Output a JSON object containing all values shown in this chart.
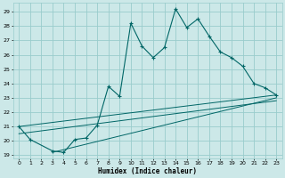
{
  "xlabel": "Humidex (Indice chaleur)",
  "bg_color": "#cce8e8",
  "grid_color": "#99cccc",
  "line_color": "#006666",
  "xlim": [
    -0.5,
    23.5
  ],
  "ylim": [
    18.8,
    29.6
  ],
  "yticks": [
    19,
    20,
    21,
    22,
    23,
    24,
    25,
    26,
    27,
    28,
    29
  ],
  "xticks": [
    0,
    1,
    2,
    3,
    4,
    5,
    6,
    7,
    8,
    9,
    10,
    11,
    12,
    13,
    14,
    15,
    16,
    17,
    18,
    19,
    20,
    21,
    22,
    23
  ],
  "main_series_x": [
    0,
    1,
    3,
    4,
    5,
    6,
    7,
    8,
    9,
    10,
    11,
    12,
    13,
    14,
    15,
    16,
    17,
    18,
    19,
    20,
    21,
    22,
    23
  ],
  "main_series_y": [
    21.0,
    20.1,
    19.3,
    19.2,
    20.1,
    20.2,
    21.1,
    23.8,
    23.1,
    28.2,
    26.6,
    25.8,
    26.5,
    29.2,
    27.9,
    28.5,
    27.3,
    26.2,
    25.8,
    25.2,
    24.0,
    23.7,
    23.2
  ],
  "line2_x": [
    0,
    23
  ],
  "line2_y": [
    21.0,
    23.2
  ],
  "line3_x": [
    0,
    23
  ],
  "line3_y": [
    20.5,
    22.8
  ],
  "line4_x": [
    3,
    23
  ],
  "line4_y": [
    19.2,
    23.0
  ]
}
